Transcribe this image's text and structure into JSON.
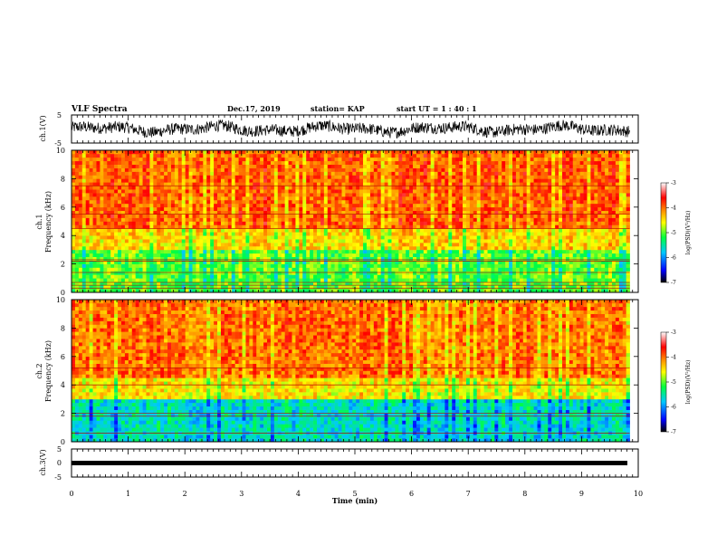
{
  "header": {
    "title": "VLF Spectra",
    "date": "Dec.17, 2019",
    "station": "station= KAP",
    "start": "start  UT =   1 : 40 : 1"
  },
  "chart_data": [
    {
      "type": "line",
      "panel": "ch1-waveform",
      "ylabel": "ch.1(V)",
      "yticks": [
        "5",
        "-5"
      ],
      "ylim": [
        -5,
        5
      ],
      "x_range": [
        0,
        10
      ],
      "series_color": "#000000",
      "style": "dense noisy waveform spanning roughly -2 to +3 V"
    },
    {
      "type": "heatmap",
      "panel": "ch1-spectrogram",
      "ylabel": [
        "ch.1",
        "Frequency (kHz)"
      ],
      "yticks": [
        "0",
        "2",
        "4",
        "6",
        "8",
        "10"
      ],
      "ylim": [
        0,
        10
      ],
      "x_range": [
        0,
        9.85
      ],
      "colorbar": {
        "label": "log(PSD)(V²/Hz)",
        "ticks": [
          "-3",
          "-4",
          "-5",
          "-6",
          "-7"
        ],
        "range": [
          -7,
          -3
        ]
      },
      "bands": [
        {
          "from_khz": 0.0,
          "to_khz": 3.0,
          "level": -5.0
        },
        {
          "from_khz": 3.0,
          "to_khz": 4.5,
          "level": -4.4
        },
        {
          "from_khz": 4.5,
          "to_khz": 10.0,
          "level": -3.9
        }
      ],
      "lines_khz": [
        0.3,
        0.5,
        0.7,
        1.4,
        2.2,
        2.3,
        4.5,
        5.5,
        7.5
      ]
    },
    {
      "type": "heatmap",
      "panel": "ch2-spectrogram",
      "ylabel": [
        "ch.2",
        "Frequency (kHz)"
      ],
      "yticks": [
        "0",
        "2",
        "4",
        "6",
        "8",
        "10"
      ],
      "ylim": [
        0,
        10
      ],
      "x_range": [
        0,
        9.85
      ],
      "colorbar": {
        "label": "log(PSD)(V²/Hz)",
        "ticks": [
          "-3",
          "-4",
          "-5",
          "-6",
          "-7"
        ],
        "range": [
          -7,
          -3
        ]
      },
      "bands": [
        {
          "from_khz": 0.0,
          "to_khz": 3.0,
          "level": -5.6
        },
        {
          "from_khz": 3.0,
          "to_khz": 4.5,
          "level": -4.5
        },
        {
          "from_khz": 4.5,
          "to_khz": 10.0,
          "level": -4.0
        }
      ],
      "lines_khz": [
        0.6,
        1.8,
        2.0,
        4.0,
        5.2
      ]
    },
    {
      "type": "line",
      "panel": "ch3-waveform",
      "ylabel": "ch.3(V)",
      "yticks": [
        "5",
        "0",
        "-5"
      ],
      "ylim": [
        -5,
        5
      ],
      "x_range": [
        0,
        9.85
      ],
      "series_color": "#000000",
      "constant_value": -1
    }
  ],
  "xaxis": {
    "label": "Time (min)",
    "ticks": [
      "0",
      "1",
      "2",
      "3",
      "4",
      "5",
      "6",
      "7",
      "8",
      "9",
      "10"
    ],
    "range": [
      0,
      10
    ]
  }
}
